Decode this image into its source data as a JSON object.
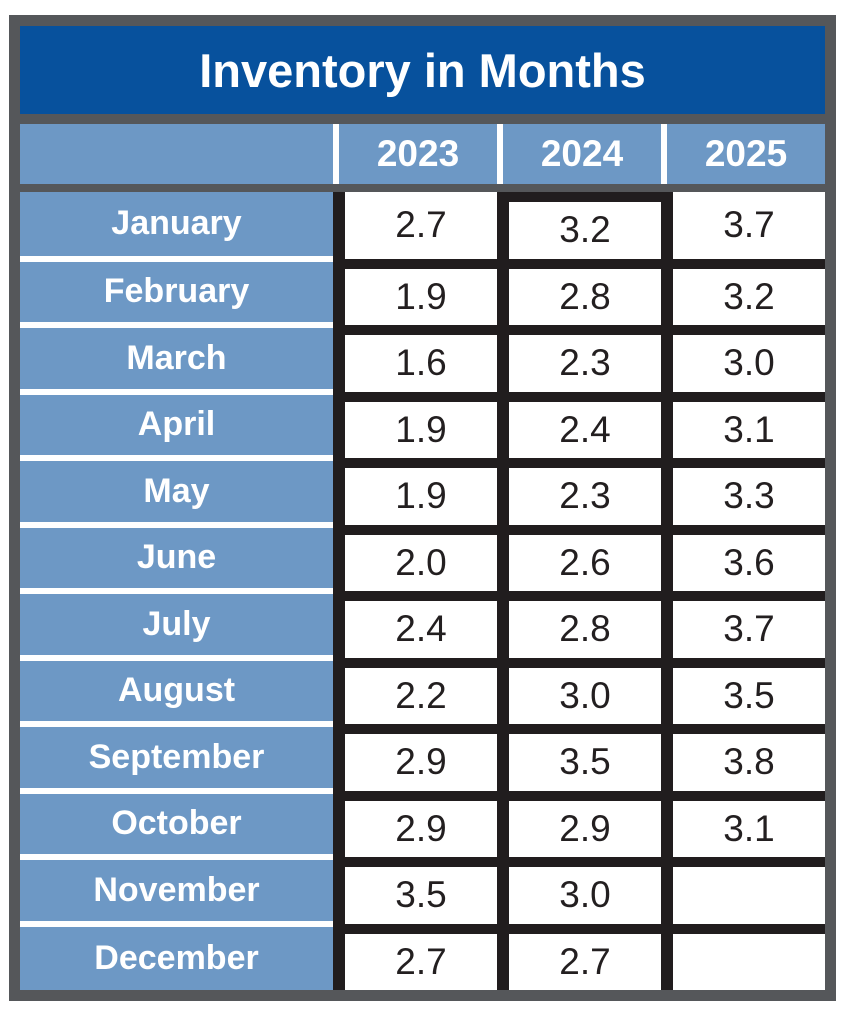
{
  "title": "Inventory in Months",
  "colors": {
    "title_bg": "#07519d",
    "cell_blue": "#6d98c5",
    "frame_gray": "#55575a",
    "grid_black": "#211d1e",
    "text_dark": "#231f20",
    "text_white": "#ffffff"
  },
  "chart_data": {
    "type": "table",
    "title": "Inventory in Months",
    "columns": [
      "2023",
      "2024",
      "2025"
    ],
    "row_header": "month",
    "rows": [
      {
        "month": "January",
        "values": [
          "2.7",
          "3.2",
          "3.7"
        ]
      },
      {
        "month": "February",
        "values": [
          "1.9",
          "2.8",
          "3.2"
        ]
      },
      {
        "month": "March",
        "values": [
          "1.6",
          "2.3",
          "3.0"
        ]
      },
      {
        "month": "April",
        "values": [
          "1.9",
          "2.4",
          "3.1"
        ]
      },
      {
        "month": "May",
        "values": [
          "1.9",
          "2.3",
          "3.3"
        ]
      },
      {
        "month": "June",
        "values": [
          "2.0",
          "2.6",
          "3.6"
        ]
      },
      {
        "month": "July",
        "values": [
          "2.4",
          "2.8",
          "3.7"
        ]
      },
      {
        "month": "August",
        "values": [
          "2.2",
          "3.0",
          "3.5"
        ]
      },
      {
        "month": "September",
        "values": [
          "2.9",
          "3.5",
          "3.8"
        ]
      },
      {
        "month": "October",
        "values": [
          "2.9",
          "2.9",
          "3.1"
        ]
      },
      {
        "month": "November",
        "values": [
          "3.5",
          "3.0",
          ""
        ]
      },
      {
        "month": "December",
        "values": [
          "2.7",
          "2.7",
          ""
        ]
      }
    ],
    "notes": "November and December 2025 cells are blank"
  }
}
